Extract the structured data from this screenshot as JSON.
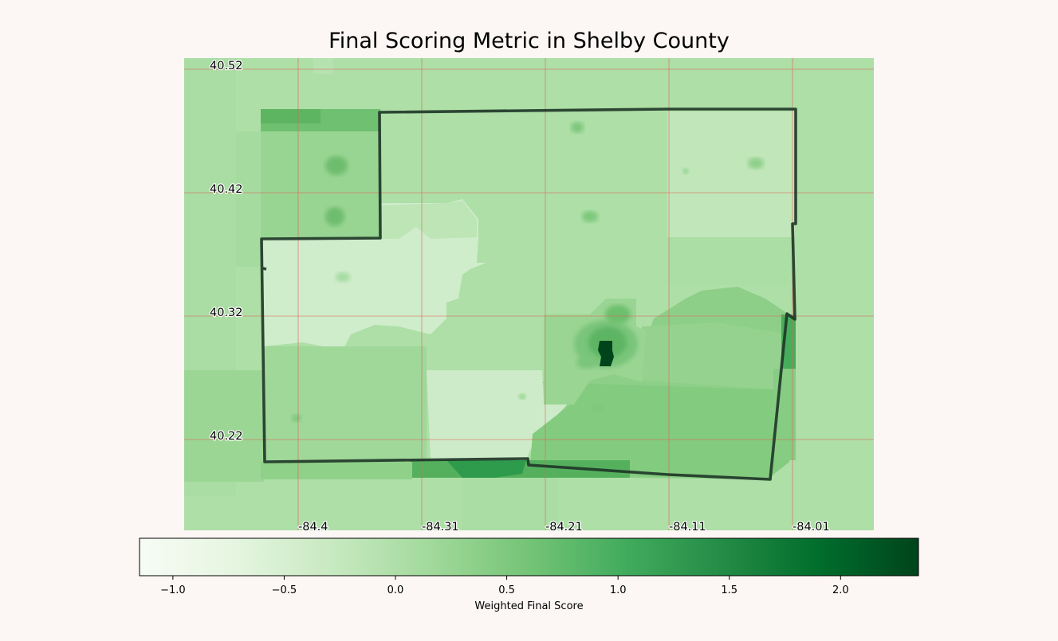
{
  "title": "Final Scoring Metric in Shelby County",
  "map": {
    "lat_labels": [
      "40.52",
      "40.42",
      "40.32",
      "40.22"
    ],
    "lon_labels": [
      "-84.4",
      "-84.31",
      "-84.21",
      "-84.11",
      "-84.01"
    ],
    "grid_color": "#e0645a",
    "boundary_color": "#1e3527"
  },
  "colorbar": {
    "label": "Weighted Final Score",
    "colormap": "Greens",
    "min": -1.15,
    "max": 2.35,
    "ticks": [
      {
        "value": -1.0,
        "label": "−1.0"
      },
      {
        "value": -0.5,
        "label": "−0.5"
      },
      {
        "value": 0.0,
        "label": "0.0"
      },
      {
        "value": 0.5,
        "label": "0.5"
      },
      {
        "value": 1.0,
        "label": "1.0"
      },
      {
        "value": 1.5,
        "label": "1.5"
      },
      {
        "value": 2.0,
        "label": "2.0"
      }
    ]
  }
}
